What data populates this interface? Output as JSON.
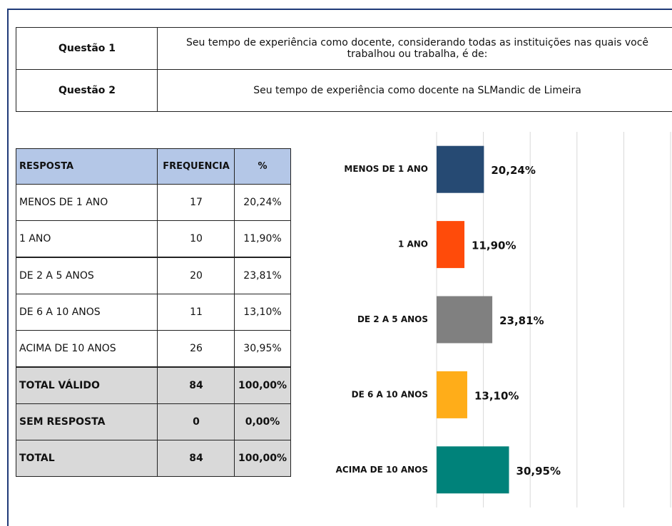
{
  "questions": [
    {
      "label": "Questão 1",
      "text": "Seu tempo de experiência como docente, considerando todas as instituições nas quais você trabalhou ou trabalha, é de:"
    },
    {
      "label": "Questão 2",
      "text": "Seu tempo de experiência como docente na SLMandic de Limeira"
    }
  ],
  "table": {
    "header": [
      "RESPOSTA",
      "FREQUENCIA",
      "%"
    ],
    "rows": [
      [
        "MENOS DE 1 ANO",
        17,
        "20,24%"
      ],
      [
        "1 ANO",
        10,
        "11,90%"
      ],
      [
        "DE 2 A 5 ANOS",
        20,
        "23,81%"
      ],
      [
        "DE 6 A 10 ANOS",
        11,
        "13,10%"
      ],
      [
        "ACIMA DE 10 ANOS",
        26,
        "30,95%"
      ]
    ],
    "totals": [
      [
        "TOTAL VÁLIDO",
        84,
        "100,00%"
      ],
      [
        "SEM RESPOSTA",
        0,
        "0,00%"
      ],
      [
        "TOTAL",
        84,
        "100,00%"
      ]
    ]
  },
  "chart_data": {
    "type": "hbar",
    "categories": [
      "MENOS DE 1 ANO",
      "1 ANO",
      "DE 2 A 5 ANOS",
      "DE 6 A 10 ANOS",
      "ACIMA DE 10 ANOS"
    ],
    "values": [
      20.24,
      11.9,
      23.81,
      13.1,
      30.95
    ],
    "value_labels": [
      "20,24%",
      "11,90%",
      "23,81%",
      "13,10%",
      "30,95%"
    ],
    "colors": [
      "#264a73",
      "#ff4b0a",
      "#808080",
      "#ffad19",
      "#00827a"
    ],
    "xlim": [
      0,
      100
    ],
    "xticks": [
      0,
      20,
      40,
      60,
      80,
      100
    ],
    "grid": true
  }
}
